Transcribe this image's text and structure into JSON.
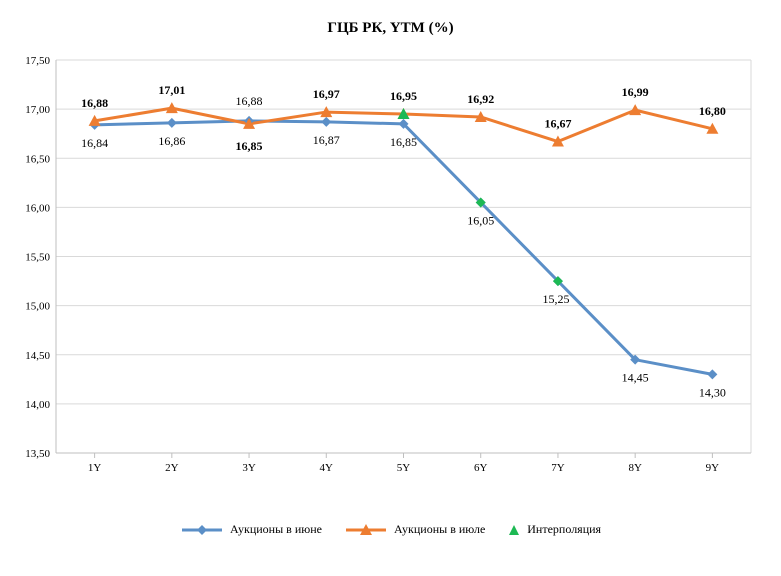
{
  "chart_data": {
    "type": "line",
    "title": "ГЦБ РК, YTM (%)",
    "xlabel": "",
    "ylabel": "",
    "categories": [
      "1Y",
      "2Y",
      "3Y",
      "4Y",
      "5Y",
      "6Y",
      "7Y",
      "8Y",
      "9Y"
    ],
    "ylim": [
      13.5,
      17.5
    ],
    "yticks": [
      13.5,
      14.0,
      14.5,
      15.0,
      15.5,
      16.0,
      16.5,
      17.0,
      17.5
    ],
    "ytick_labels": [
      "13,50",
      "14,00",
      "14,50",
      "15,00",
      "15,50",
      "16,00",
      "16,50",
      "17,00",
      "17,50"
    ],
    "grid": true,
    "legend_position": "bottom",
    "series": [
      {
        "name": "Аукционы в июне",
        "color": "#5B8FC7",
        "marker": "diamond",
        "values": [
          16.84,
          16.86,
          16.88,
          16.87,
          16.85,
          16.05,
          15.25,
          14.45,
          14.3
        ],
        "labels": [
          "16,84",
          "16,86",
          "16,88",
          "16,87",
          "16,85",
          "16,05",
          "15,25",
          "14,45",
          "14,30"
        ],
        "label_bold": [
          false,
          false,
          false,
          false,
          false,
          false,
          false,
          false,
          false
        ]
      },
      {
        "name": "Аукционы в июле",
        "color": "#ED7D31",
        "marker": "triangle",
        "values": [
          16.88,
          17.01,
          16.85,
          16.97,
          16.95,
          16.92,
          16.67,
          16.99,
          16.8
        ],
        "labels": [
          "16,88",
          "17,01",
          "16,85",
          "16,97",
          "16,95",
          "16,92",
          "16,67",
          "16,99",
          "16,80"
        ],
        "label_bold": [
          true,
          true,
          true,
          true,
          true,
          true,
          true,
          true,
          true
        ]
      }
    ],
    "interpolation": {
      "name": "Интерполяция",
      "color": "#1DB954",
      "points": [
        {
          "x": "5Y",
          "y": 16.95,
          "marker": "triangle"
        },
        {
          "x": "6Y",
          "y": 16.05,
          "marker": "diamond"
        },
        {
          "x": "7Y",
          "y": 15.25,
          "marker": "diamond"
        }
      ]
    }
  }
}
